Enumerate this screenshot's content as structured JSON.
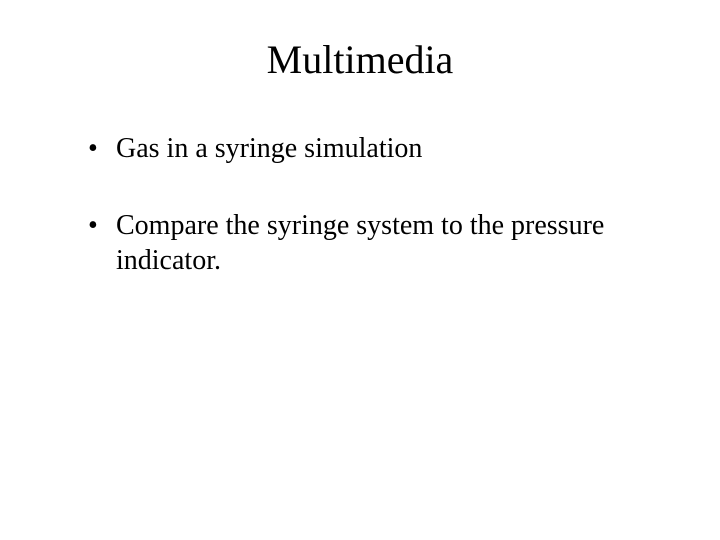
{
  "slide": {
    "title": "Multimedia",
    "bullets": [
      "Gas in a syringe simulation",
      "Compare the syringe system to the pressure indicator."
    ],
    "background_color": "#ffffff",
    "text_color": "#000000",
    "title_fontsize": 40,
    "body_fontsize": 28,
    "font_family": "Times New Roman"
  }
}
